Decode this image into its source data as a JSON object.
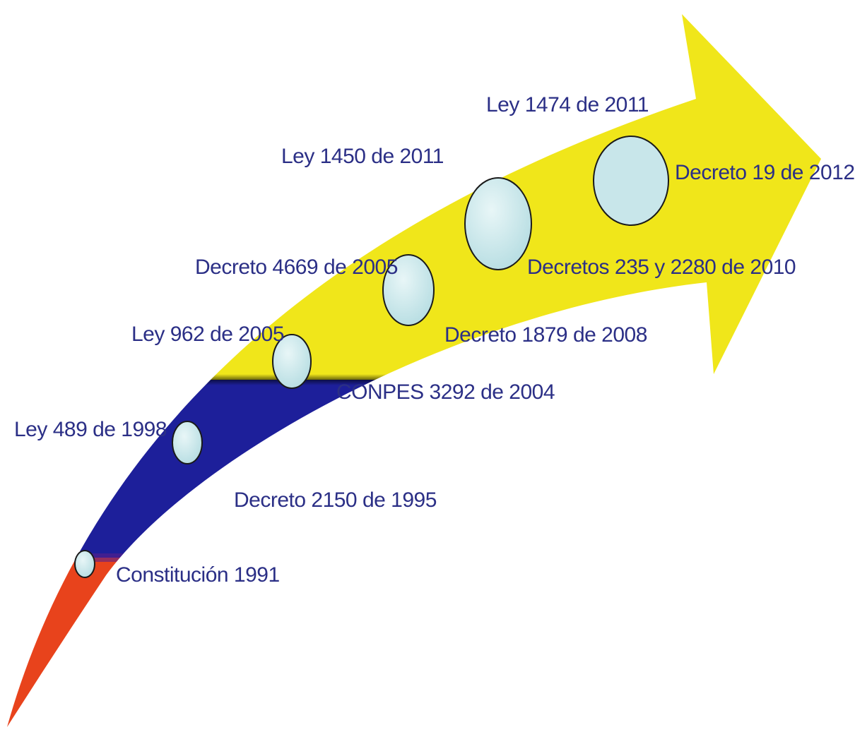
{
  "timeline": {
    "milestones": [
      {
        "id": "constitucion-1991",
        "label": "Constitución 1991"
      },
      {
        "id": "decreto-2150-1995",
        "label": "Decreto 2150 de 1995"
      },
      {
        "id": "ley-489-1998",
        "label": "Ley 489 de 1998"
      },
      {
        "id": "conpes-3292-2004",
        "label": "CONPES 3292 de 2004"
      },
      {
        "id": "ley-962-2005",
        "label": "Ley 962 de 2005"
      },
      {
        "id": "decreto-4669-2005",
        "label": "Decreto 4669 de 2005"
      },
      {
        "id": "decreto-1879-2008",
        "label": "Decreto 1879 de 2008"
      },
      {
        "id": "decretos-235-2280-2010",
        "label": "Decretos 235 y 2280 de 2010"
      },
      {
        "id": "ley-1450-2011",
        "label": "Ley 1450 de 2011"
      },
      {
        "id": "ley-1474-2011",
        "label": "Ley 1474 de 2011"
      },
      {
        "id": "decreto-19-2012",
        "label": "Decreto 19 de 2012"
      }
    ]
  },
  "colors": {
    "yellow": "#f0e61a",
    "blue": "#1d1f9a",
    "red": "#e8431c",
    "bubble": "#c8e6ea",
    "text": "#2b2f86"
  }
}
